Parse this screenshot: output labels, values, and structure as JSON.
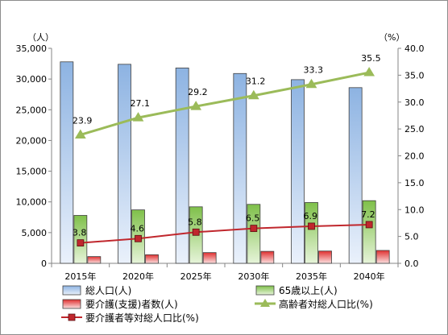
{
  "chart_data": {
    "type": "bar",
    "categories": [
      "2015年",
      "2020年",
      "2025年",
      "2030年",
      "2035年",
      "2040年"
    ],
    "y_left": {
      "unit_label": "（人）",
      "ylim": [
        0,
        35000
      ],
      "ticks": [
        "0",
        "5,000",
        "10,000",
        "15,000",
        "20,000",
        "25,000",
        "30,000",
        "35,000"
      ]
    },
    "y_right": {
      "unit_label": "（%）",
      "ylim": [
        0,
        40
      ],
      "ticks": [
        "0.0",
        "5.0",
        "10.0",
        "15.0",
        "20.0",
        "25.0",
        "30.0",
        "35.0",
        "40.0"
      ]
    },
    "series": [
      {
        "name": "総人口(人)",
        "type": "bar",
        "axis": "left",
        "color": "#8db3e2",
        "values": [
          32800,
          32400,
          31800,
          30900,
          29900,
          28600
        ]
      },
      {
        "name": "65歳以上(人)",
        "type": "bar",
        "axis": "left",
        "color": "#92d050",
        "values": [
          7800,
          8700,
          9200,
          9600,
          9900,
          10200
        ]
      },
      {
        "name": "要介護(支援)者数(人)",
        "type": "bar",
        "axis": "left",
        "color": "#e04040",
        "values": [
          1100,
          1400,
          1750,
          1950,
          2000,
          2100
        ]
      },
      {
        "name": "高齢者対総人口比(%)",
        "type": "line",
        "axis": "right",
        "color": "#9bbb59",
        "marker": "triangle",
        "values": [
          23.9,
          27.1,
          29.2,
          31.2,
          33.3,
          35.5
        ],
        "labels": [
          "23.9",
          "27.1",
          "29.2",
          "31.2",
          "33.3",
          "35.5"
        ]
      },
      {
        "name": "要介護者等対総人口比(%)",
        "type": "line",
        "axis": "right",
        "color": "#c0272d",
        "marker": "square",
        "values": [
          3.8,
          4.6,
          5.8,
          6.5,
          6.9,
          7.2
        ],
        "labels": [
          "3.8",
          "4.6",
          "5.8",
          "6.5",
          "6.9",
          "7.2"
        ]
      }
    ],
    "grid": false,
    "legend_position": "bottom"
  }
}
